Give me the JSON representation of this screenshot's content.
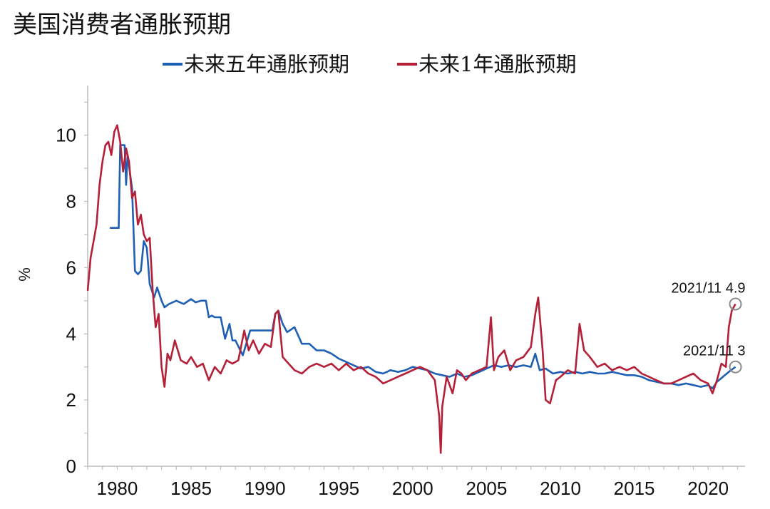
{
  "chart_data": {
    "type": "line",
    "title": "美国消费者通胀预期",
    "ylabel": "%",
    "xlabel": "",
    "xlim": [
      1978,
      2022.5
    ],
    "ylim": [
      0,
      11.5
    ],
    "x_ticks": [
      1980,
      1985,
      1990,
      1995,
      2000,
      2005,
      2010,
      2015,
      2020
    ],
    "y_ticks": [
      0,
      2,
      4,
      6,
      8,
      10
    ],
    "legend_position": "top-center",
    "grid": false,
    "series": [
      {
        "name": "未来五年通胀预期",
        "color": "#1f5fb4",
        "x": [
          1979.5,
          1979.7,
          1979.9,
          1980.1,
          1980.2,
          1980.3,
          1980.5,
          1980.6,
          1980.7,
          1981.0,
          1981.2,
          1981.4,
          1981.6,
          1981.8,
          1982.0,
          1982.2,
          1982.5,
          1982.7,
          1983.0,
          1983.2,
          1983.5,
          1984.0,
          1984.5,
          1985.0,
          1985.3,
          1985.7,
          1986.0,
          1986.2,
          1986.4,
          1986.6,
          1987.0,
          1987.3,
          1987.6,
          1987.8,
          1988.0,
          1988.5,
          1989.0,
          1989.5,
          1990.0,
          1990.5,
          1990.7,
          1990.9,
          1991.2,
          1991.5,
          1992.0,
          1992.5,
          1993.0,
          1993.5,
          1994.0,
          1994.5,
          1995.0,
          1995.5,
          1996.0,
          1996.5,
          1997.0,
          1997.5,
          1998.0,
          1998.5,
          1999.0,
          1999.5,
          2000.0,
          2000.5,
          2001.0,
          2001.5,
          2002.0,
          2002.5,
          2003.0,
          2003.5,
          2004.0,
          2004.5,
          2005.0,
          2005.5,
          2006.0,
          2006.5,
          2007.0,
          2007.5,
          2008.0,
          2008.3,
          2008.6,
          2009.0,
          2009.5,
          2010.0,
          2010.5,
          2011.0,
          2011.5,
          2012.0,
          2012.5,
          2013.0,
          2013.5,
          2014.0,
          2014.5,
          2015.0,
          2015.5,
          2016.0,
          2016.5,
          2017.0,
          2017.5,
          2018.0,
          2018.5,
          2019.0,
          2019.5,
          2020.0,
          2020.3,
          2020.6,
          2021.0,
          2021.4,
          2021.7,
          2021.85
        ],
        "y": [
          7.2,
          7.2,
          7.2,
          7.2,
          9.7,
          9.7,
          9.7,
          8.5,
          9.4,
          8.4,
          5.9,
          5.8,
          5.9,
          6.8,
          6.6,
          5.5,
          5.1,
          5.4,
          5.0,
          4.8,
          4.9,
          5.0,
          4.9,
          5.05,
          4.95,
          5.0,
          5.0,
          4.5,
          4.55,
          4.5,
          4.5,
          3.85,
          4.3,
          3.8,
          3.8,
          3.35,
          4.1,
          4.1,
          4.1,
          4.1,
          4.6,
          4.7,
          4.3,
          4.05,
          4.2,
          3.7,
          3.7,
          3.5,
          3.5,
          3.4,
          3.25,
          3.15,
          3.05,
          2.95,
          3.0,
          2.85,
          2.8,
          2.9,
          2.85,
          2.9,
          3.0,
          2.95,
          2.9,
          2.8,
          2.75,
          2.7,
          2.8,
          2.7,
          2.75,
          2.85,
          2.95,
          3.05,
          3.0,
          3.05,
          3.0,
          3.05,
          3.0,
          3.4,
          2.9,
          2.95,
          2.8,
          2.85,
          2.8,
          2.85,
          2.8,
          2.85,
          2.8,
          2.8,
          2.85,
          2.8,
          2.75,
          2.75,
          2.7,
          2.6,
          2.55,
          2.5,
          2.5,
          2.45,
          2.5,
          2.45,
          2.4,
          2.45,
          2.35,
          2.55,
          2.7,
          2.85,
          2.95,
          3.0
        ]
      },
      {
        "name": "未来1年通胀预期",
        "color": "#b51f38",
        "x": [
          1978.0,
          1978.2,
          1978.4,
          1978.6,
          1978.8,
          1979.0,
          1979.2,
          1979.4,
          1979.6,
          1979.8,
          1980.0,
          1980.2,
          1980.4,
          1980.6,
          1980.8,
          1981.0,
          1981.2,
          1981.4,
          1981.6,
          1981.8,
          1982.0,
          1982.2,
          1982.4,
          1982.6,
          1982.8,
          1983.0,
          1983.2,
          1983.4,
          1983.6,
          1983.9,
          1984.3,
          1984.7,
          1985.0,
          1985.4,
          1985.8,
          1986.2,
          1986.6,
          1987.0,
          1987.4,
          1987.8,
          1988.2,
          1988.6,
          1988.9,
          1989.2,
          1989.6,
          1990.0,
          1990.4,
          1990.7,
          1990.9,
          1991.2,
          1991.6,
          1992.0,
          1992.5,
          1993.0,
          1993.5,
          1994.0,
          1994.5,
          1995.0,
          1995.5,
          1996.0,
          1996.5,
          1997.0,
          1997.5,
          1998.0,
          1998.5,
          1999.0,
          1999.5,
          2000.0,
          2000.5,
          2001.0,
          2001.5,
          2001.8,
          2001.9,
          2002.0,
          2002.3,
          2002.7,
          2003.0,
          2003.3,
          2003.6,
          2004.0,
          2004.5,
          2005.0,
          2005.3,
          2005.5,
          2005.8,
          2006.2,
          2006.6,
          2007.0,
          2007.5,
          2008.0,
          2008.3,
          2008.5,
          2008.8,
          2009.0,
          2009.3,
          2009.7,
          2010.0,
          2010.5,
          2011.0,
          2011.3,
          2011.6,
          2012.0,
          2012.5,
          2013.0,
          2013.5,
          2014.0,
          2014.5,
          2015.0,
          2015.5,
          2016.0,
          2016.5,
          2017.0,
          2017.5,
          2018.0,
          2018.5,
          2019.0,
          2019.5,
          2020.0,
          2020.3,
          2020.6,
          2020.9,
          2021.2,
          2021.4,
          2021.6,
          2021.85
        ],
        "y": [
          5.3,
          6.3,
          6.8,
          7.3,
          8.5,
          9.2,
          9.7,
          9.8,
          9.4,
          10.1,
          10.3,
          9.8,
          8.9,
          9.6,
          9.2,
          8.1,
          8.3,
          7.3,
          7.6,
          7.0,
          6.8,
          6.9,
          5.3,
          4.2,
          4.6,
          3.0,
          2.4,
          3.4,
          3.2,
          3.8,
          3.2,
          3.1,
          3.3,
          3.0,
          3.1,
          2.6,
          3.0,
          2.8,
          3.2,
          3.1,
          3.2,
          4.1,
          3.5,
          3.8,
          3.4,
          3.7,
          3.6,
          4.6,
          4.7,
          3.3,
          3.1,
          2.9,
          2.8,
          3.0,
          3.1,
          3.0,
          3.1,
          2.9,
          3.1,
          2.9,
          3.0,
          2.8,
          2.7,
          2.5,
          2.6,
          2.7,
          2.8,
          2.9,
          3.0,
          2.9,
          2.6,
          1.5,
          0.4,
          1.8,
          2.7,
          2.2,
          2.9,
          2.8,
          2.6,
          2.8,
          2.9,
          3.0,
          4.5,
          2.9,
          3.3,
          3.5,
          2.9,
          3.2,
          3.3,
          3.6,
          4.6,
          5.1,
          3.5,
          2.0,
          1.9,
          2.6,
          2.7,
          2.9,
          2.8,
          4.3,
          3.5,
          3.3,
          3.0,
          3.1,
          2.9,
          3.0,
          2.9,
          3.0,
          2.8,
          2.7,
          2.6,
          2.5,
          2.5,
          2.6,
          2.7,
          2.8,
          2.6,
          2.5,
          2.2,
          2.6,
          3.1,
          3.0,
          4.2,
          4.7,
          4.9
        ]
      }
    ],
    "annotations": [
      {
        "text": "2021/11 4.9",
        "x": 2021.85,
        "y": 4.9
      },
      {
        "text": "2021/11 3",
        "x": 2021.85,
        "y": 3.0
      }
    ]
  }
}
